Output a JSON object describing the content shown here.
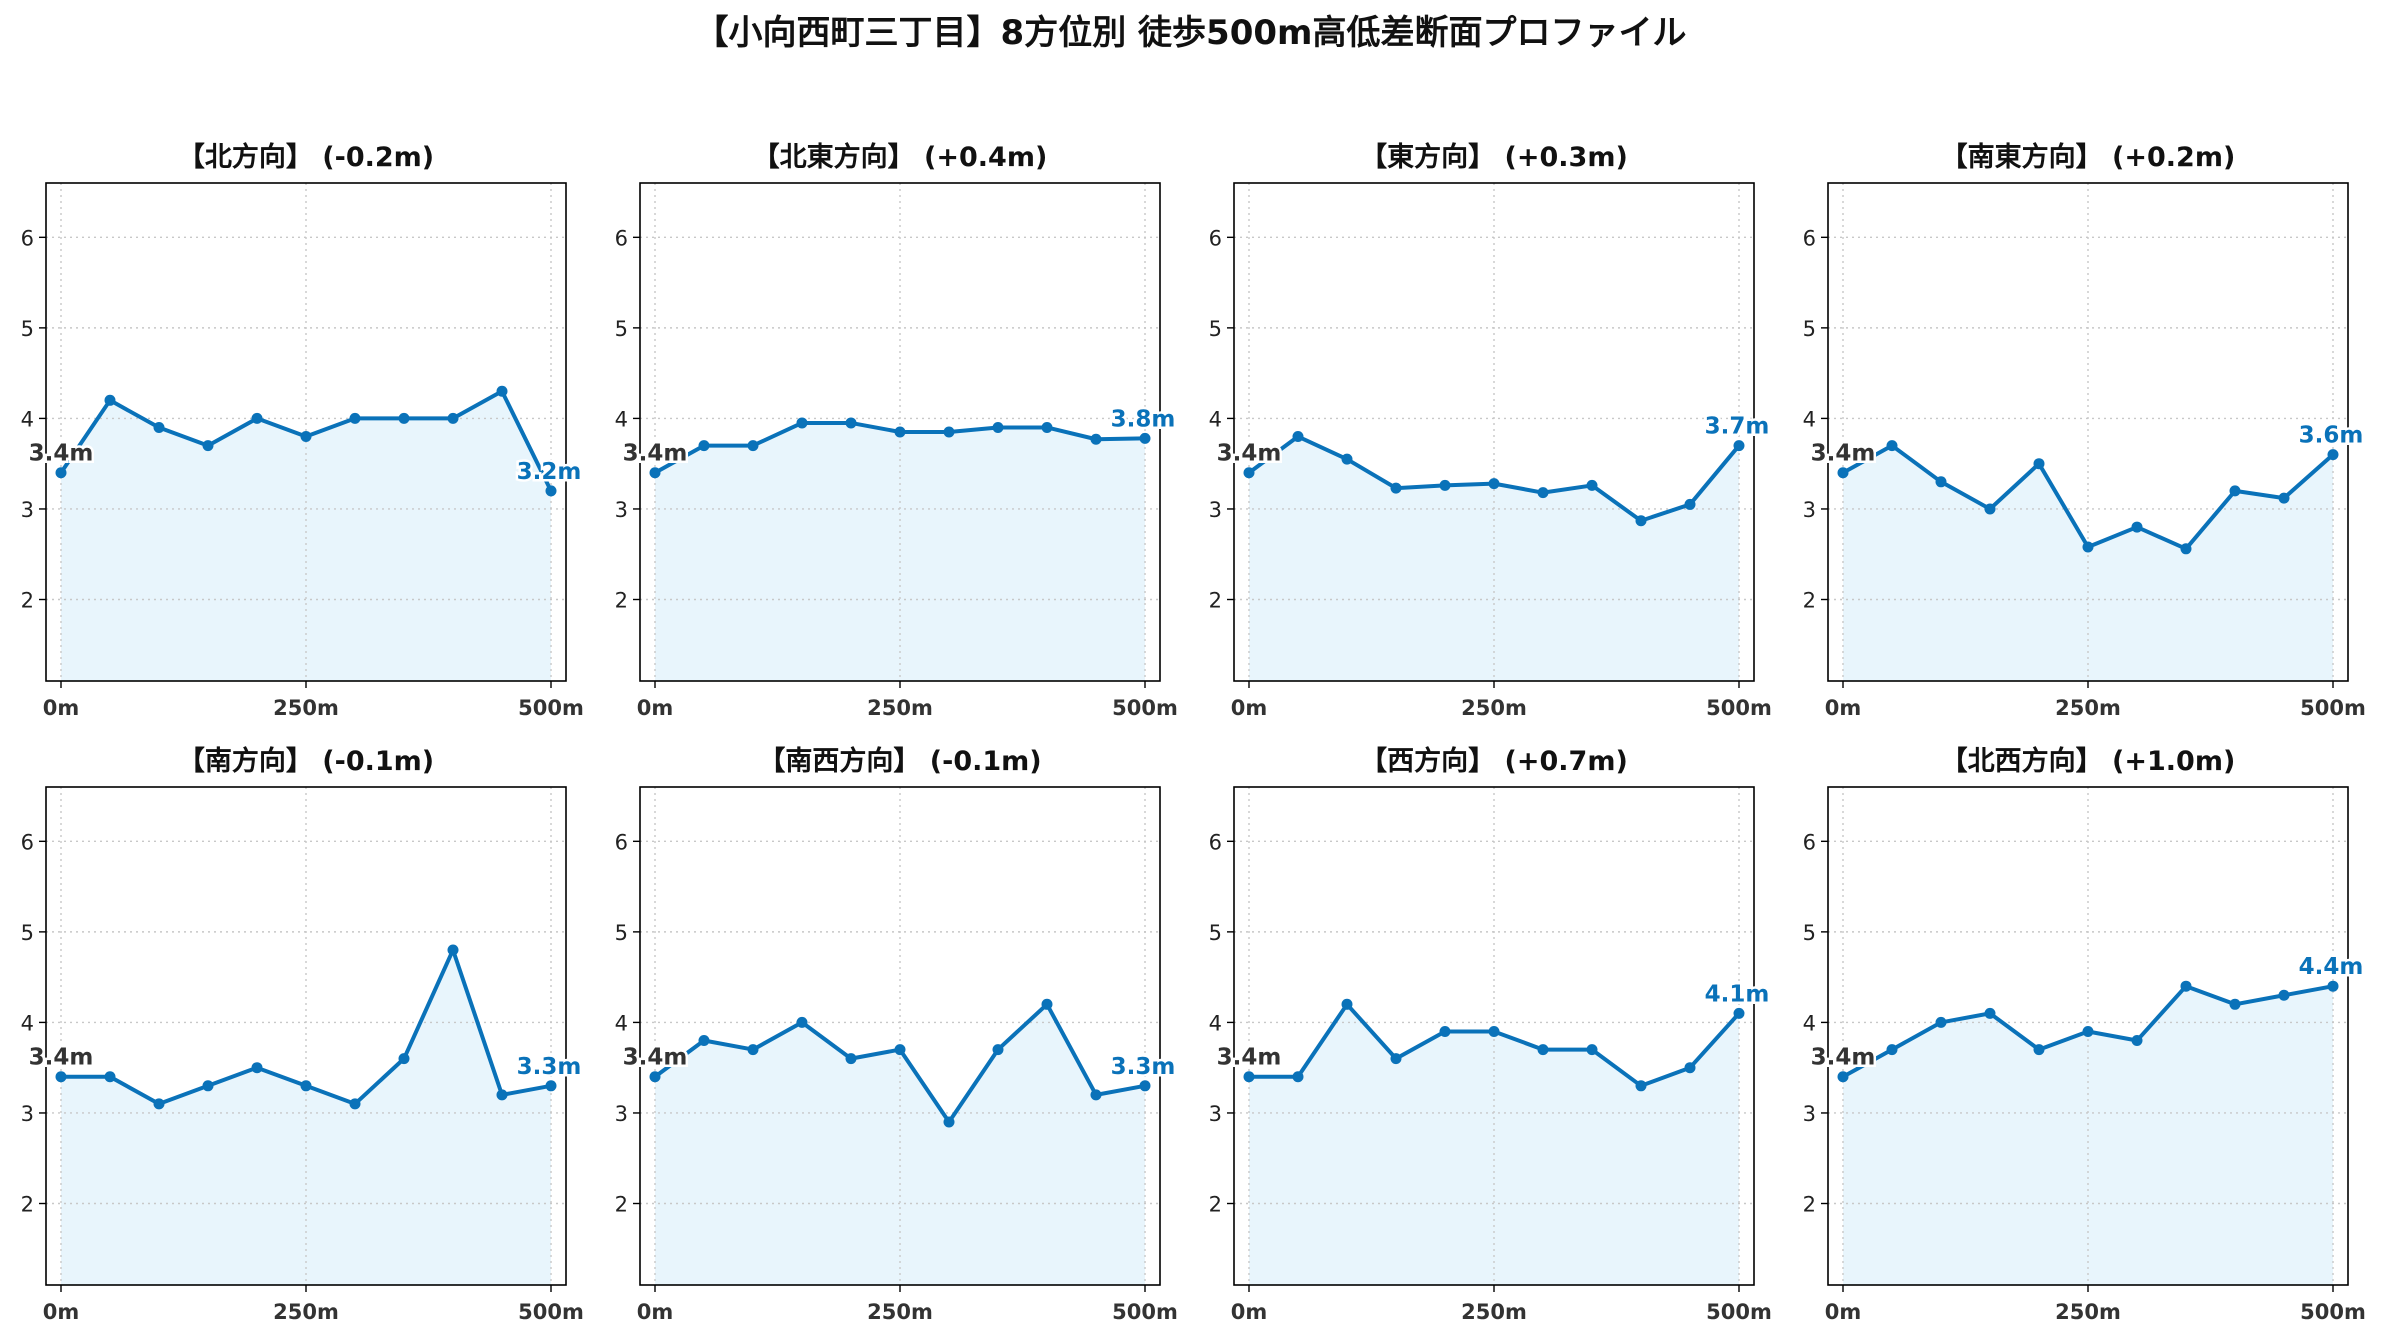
{
  "title": "【小向西町三丁目】8方位別 徒歩500m高低差断面プロファイル",
  "colors": {
    "line": "#0a72b9",
    "fill": "#e8f5fc",
    "start_label": "#333333",
    "end_label": "#0a72b9",
    "grid": "#c8c8c8"
  },
  "chart_data": [
    {
      "type": "line",
      "title": "【北方向】 (-0.2m)",
      "x": [
        0,
        50,
        100,
        150,
        200,
        250,
        300,
        350,
        400,
        450,
        500
      ],
      "y": [
        3.4,
        4.2,
        3.9,
        3.7,
        4.0,
        3.8,
        4.0,
        4.0,
        4.0,
        4.3,
        3.2
      ],
      "xticks": [
        "0m",
        "250m",
        "500m"
      ],
      "yticks": [
        2,
        3,
        4,
        5,
        6
      ],
      "ylim": [
        1.1,
        6.6
      ],
      "xlim": [
        0,
        500
      ],
      "start_label": "3.4m",
      "end_label": "3.2m",
      "grid": true
    },
    {
      "type": "line",
      "title": "【北東方向】 (+0.4m)",
      "x": [
        0,
        50,
        100,
        150,
        200,
        250,
        300,
        350,
        400,
        450,
        500
      ],
      "y": [
        3.4,
        3.7,
        3.7,
        3.95,
        3.95,
        3.85,
        3.85,
        3.9,
        3.9,
        3.77,
        3.78
      ],
      "xticks": [
        "0m",
        "250m",
        "500m"
      ],
      "yticks": [
        2,
        3,
        4,
        5,
        6
      ],
      "ylim": [
        1.1,
        6.6
      ],
      "xlim": [
        0,
        500
      ],
      "start_label": "3.4m",
      "end_label": "3.8m",
      "grid": true
    },
    {
      "type": "line",
      "title": "【東方向】 (+0.3m)",
      "x": [
        0,
        50,
        100,
        150,
        200,
        250,
        300,
        350,
        400,
        450,
        500
      ],
      "y": [
        3.4,
        3.8,
        3.55,
        3.23,
        3.26,
        3.28,
        3.18,
        3.26,
        2.87,
        3.05,
        3.7
      ],
      "xticks": [
        "0m",
        "250m",
        "500m"
      ],
      "yticks": [
        2,
        3,
        4,
        5,
        6
      ],
      "ylim": [
        1.1,
        6.6
      ],
      "xlim": [
        0,
        500
      ],
      "start_label": "3.4m",
      "end_label": "3.7m",
      "grid": true
    },
    {
      "type": "line",
      "title": "【南東方向】 (+0.2m)",
      "x": [
        0,
        50,
        100,
        150,
        200,
        250,
        300,
        350,
        400,
        450,
        500
      ],
      "y": [
        3.4,
        3.7,
        3.3,
        3.0,
        3.5,
        2.58,
        2.8,
        2.56,
        3.2,
        3.12,
        3.6
      ],
      "xticks": [
        "0m",
        "250m",
        "500m"
      ],
      "yticks": [
        2,
        3,
        4,
        5,
        6
      ],
      "ylim": [
        1.1,
        6.6
      ],
      "xlim": [
        0,
        500
      ],
      "start_label": "3.4m",
      "end_label": "3.6m",
      "grid": true
    },
    {
      "type": "line",
      "title": "【南方向】 (-0.1m)",
      "x": [
        0,
        50,
        100,
        150,
        200,
        250,
        300,
        350,
        400,
        450,
        500
      ],
      "y": [
        3.4,
        3.4,
        3.1,
        3.3,
        3.5,
        3.3,
        3.1,
        3.6,
        4.8,
        3.2,
        3.3
      ],
      "xticks": [
        "0m",
        "250m",
        "500m"
      ],
      "yticks": [
        2,
        3,
        4,
        5,
        6
      ],
      "ylim": [
        1.1,
        6.6
      ],
      "xlim": [
        0,
        500
      ],
      "start_label": "3.4m",
      "end_label": "3.3m",
      "grid": true
    },
    {
      "type": "line",
      "title": "【南西方向】 (-0.1m)",
      "x": [
        0,
        50,
        100,
        150,
        200,
        250,
        300,
        350,
        400,
        450,
        500
      ],
      "y": [
        3.4,
        3.8,
        3.7,
        4.0,
        3.6,
        3.7,
        2.9,
        3.7,
        4.2,
        3.2,
        3.3
      ],
      "xticks": [
        "0m",
        "250m",
        "500m"
      ],
      "yticks": [
        2,
        3,
        4,
        5,
        6
      ],
      "ylim": [
        1.1,
        6.6
      ],
      "xlim": [
        0,
        500
      ],
      "start_label": "3.4m",
      "end_label": "3.3m",
      "grid": true
    },
    {
      "type": "line",
      "title": "【西方向】 (+0.7m)",
      "x": [
        0,
        50,
        100,
        150,
        200,
        250,
        300,
        350,
        400,
        450,
        500
      ],
      "y": [
        3.4,
        3.4,
        4.2,
        3.6,
        3.9,
        3.9,
        3.7,
        3.7,
        3.3,
        3.5,
        4.1
      ],
      "xticks": [
        "0m",
        "250m",
        "500m"
      ],
      "yticks": [
        2,
        3,
        4,
        5,
        6
      ],
      "ylim": [
        1.1,
        6.6
      ],
      "xlim": [
        0,
        500
      ],
      "start_label": "3.4m",
      "end_label": "4.1m",
      "grid": true
    },
    {
      "type": "line",
      "title": "【北西方向】 (+1.0m)",
      "x": [
        0,
        50,
        100,
        150,
        200,
        250,
        300,
        350,
        400,
        450,
        500
      ],
      "y": [
        3.4,
        3.7,
        4.0,
        4.1,
        3.7,
        3.9,
        3.8,
        4.4,
        4.2,
        4.3,
        4.4
      ],
      "xticks": [
        "0m",
        "250m",
        "500m"
      ],
      "yticks": [
        2,
        3,
        4,
        5,
        6
      ],
      "ylim": [
        1.1,
        6.6
      ],
      "xlim": [
        0,
        500
      ],
      "start_label": "3.4m",
      "end_label": "4.4m",
      "grid": true
    }
  ]
}
